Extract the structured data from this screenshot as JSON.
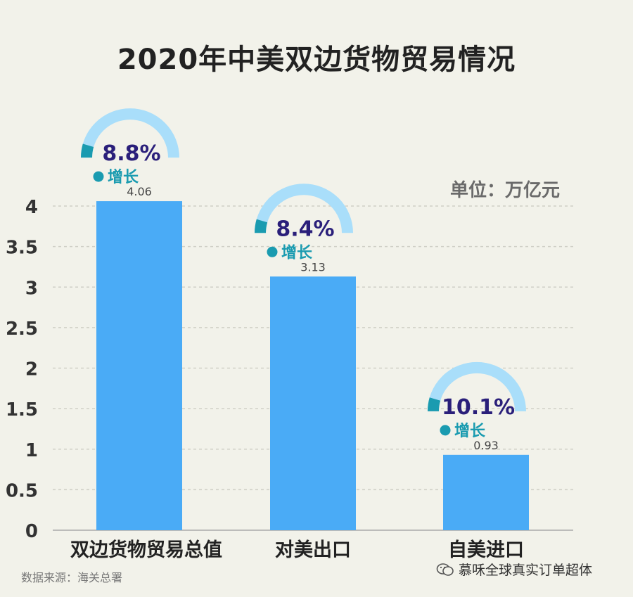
{
  "chart_data": {
    "type": "bar",
    "title": "2020年中美双边货物贸易情况",
    "unit": "单位：万亿元",
    "categories": [
      "双边货物贸易总值",
      "对美出口",
      "自美进口"
    ],
    "values": [
      4.06,
      3.13,
      0.93
    ],
    "value_labels": [
      "4.06",
      "3.13",
      "0.93"
    ],
    "growth": [
      "8.8%",
      "8.4%",
      "10.1%"
    ],
    "growth_label": "增长",
    "ylim": [
      0,
      4
    ],
    "yticks": [
      "0",
      "0.5",
      "1",
      "1.5",
      "2",
      "2.5",
      "3",
      "3.5",
      "4"
    ],
    "ytick_values": [
      0,
      0.5,
      1,
      1.5,
      2,
      2.5,
      3,
      3.5,
      4
    ],
    "grid": true,
    "bar_color": "#4aabf6",
    "gauge_light_color": "#a9defa",
    "gauge_dark_color": "#1a9bb0",
    "percent_color": "#2a1f7a"
  },
  "footer": {
    "source": "数据来源：海关总署",
    "watermark": "慕咊全球真实订单超体"
  }
}
